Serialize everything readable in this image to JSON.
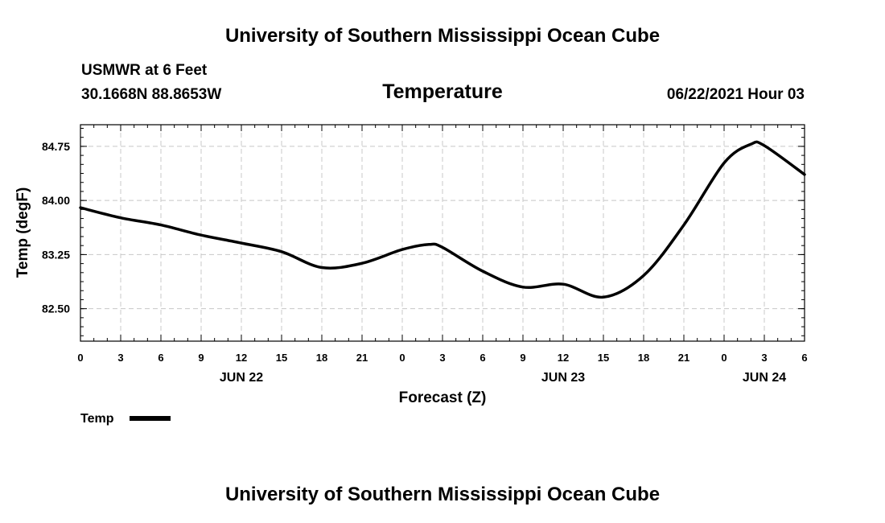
{
  "header": {
    "title": "University of Southern Mississippi Ocean Cube",
    "station": "USMWR at 6 Feet",
    "coords": "30.1668N  88.8653W",
    "plot_title": "Temperature",
    "datetime": "06/22/2021 Hour 03"
  },
  "footer": {
    "title": "University of Southern Mississippi Ocean Cube"
  },
  "chart_data": {
    "type": "line",
    "title": "Temperature",
    "xlabel": "Forecast (Z)",
    "ylabel": "Temp (degF)",
    "xlim": [
      0,
      54
    ],
    "ylim": [
      82.05,
      85.05
    ],
    "x_tick_values": [
      0,
      3,
      6,
      9,
      12,
      15,
      18,
      21,
      24,
      27,
      30,
      33,
      36,
      39,
      42,
      45,
      48,
      51,
      54
    ],
    "x_tick_labels": [
      "0",
      "3",
      "6",
      "9",
      "12",
      "15",
      "18",
      "21",
      "0",
      "3",
      "6",
      "9",
      "12",
      "15",
      "18",
      "21",
      "0",
      "3",
      "6"
    ],
    "x_day_labels": [
      {
        "x": 12,
        "label": "JUN 22"
      },
      {
        "x": 36,
        "label": "JUN 23"
      },
      {
        "x": 51,
        "label": "JUN 24"
      }
    ],
    "y_tick_values": [
      82.5,
      83.25,
      84.0,
      84.75
    ],
    "y_tick_labels": [
      "82.50",
      "83.25",
      "84.00",
      "84.75"
    ],
    "grid": true,
    "legend": "bottom-left",
    "series": [
      {
        "name": "Temp",
        "color": "#000000",
        "x": [
          0,
          3,
          6,
          9,
          12,
          15,
          18,
          21,
          24,
          26,
          27,
          30,
          33,
          36,
          39,
          42,
          45,
          48,
          50,
          51,
          54
        ],
        "y": [
          83.9,
          83.76,
          83.66,
          83.52,
          83.41,
          83.29,
          83.07,
          83.13,
          83.32,
          83.39,
          83.35,
          83.02,
          82.8,
          82.84,
          82.66,
          82.96,
          83.66,
          84.52,
          84.78,
          84.76,
          84.36
        ]
      }
    ]
  }
}
